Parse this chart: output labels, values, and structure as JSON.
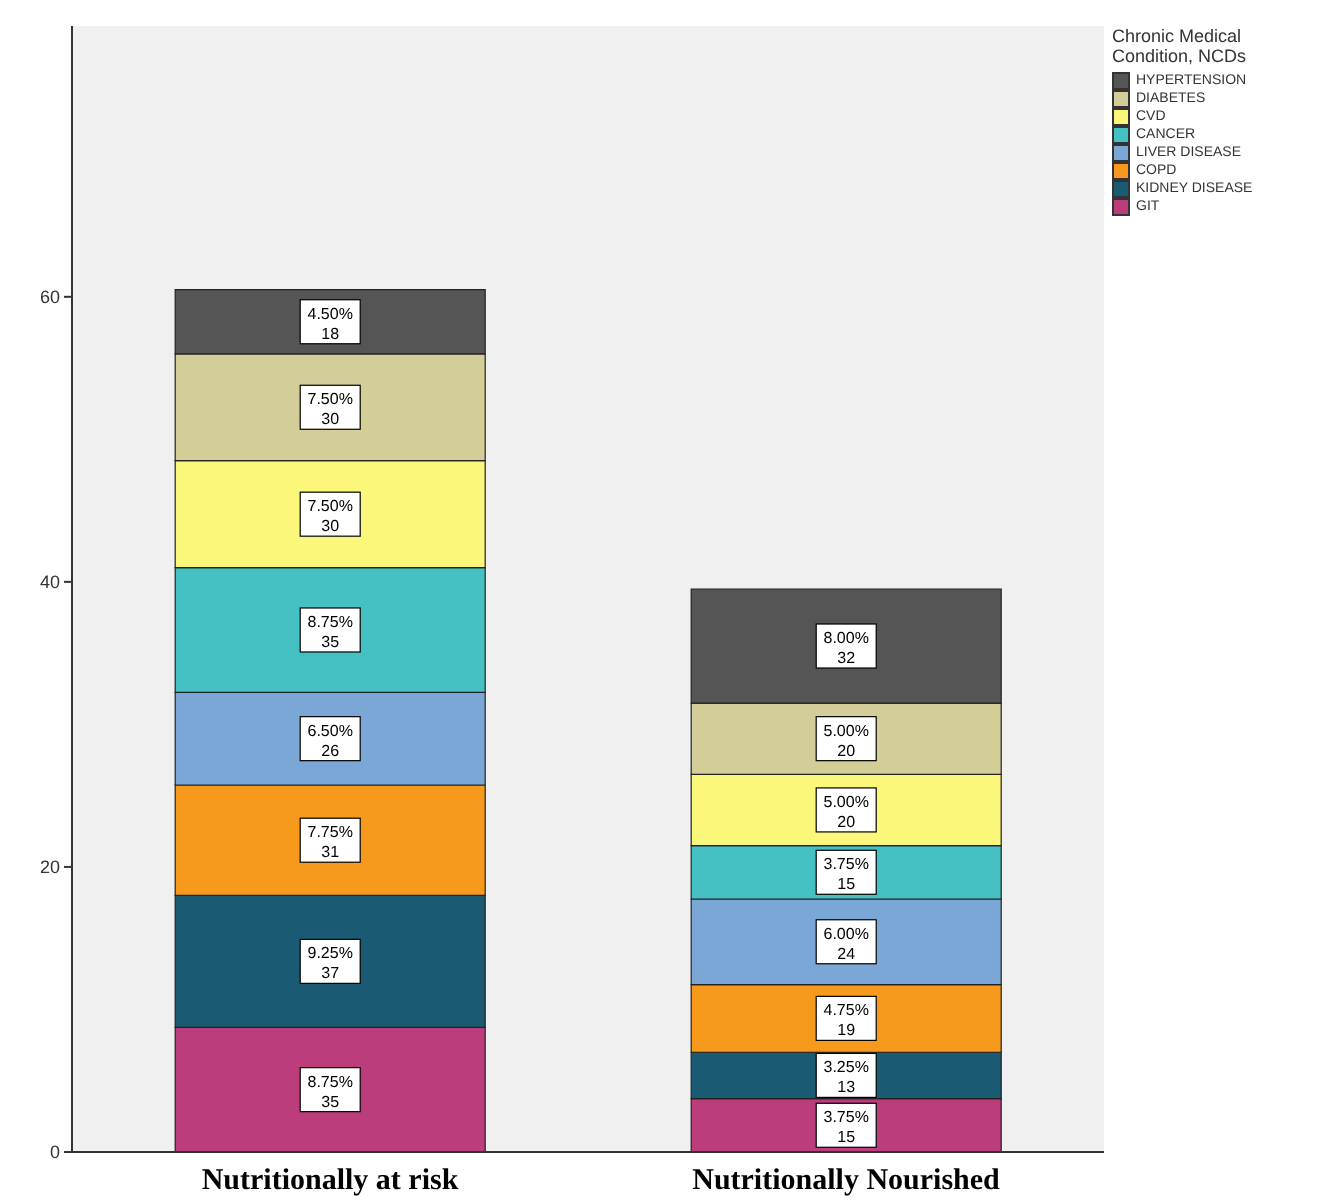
{
  "chart_data": {
    "type": "bar",
    "stacked": true,
    "categories": [
      "Nutritionally at risk",
      "Nutritionally Nourished"
    ],
    "legend_title": "Chronic Medical Condition, NCDs",
    "legend": "top right",
    "grid": false,
    "ylim": [
      0,
      79
    ],
    "yticks": [
      0,
      20,
      40,
      60
    ],
    "series": [
      {
        "name": "GIT",
        "color": "#bb3d7b",
        "values": [
          8.75,
          3.75
        ],
        "value_labels": [
          "8.75%\n35",
          "3.75%\n15"
        ]
      },
      {
        "name": "KIDNEY DISEASE",
        "color": "#1a5a72",
        "values": [
          9.25,
          3.25
        ],
        "value_labels": [
          "9.25%\n37",
          "3.25%\n13"
        ]
      },
      {
        "name": "COPD",
        "color": "#f7991d",
        "values": [
          7.75,
          4.75
        ],
        "value_labels": [
          "7.75%\n31",
          "4.75%\n19"
        ]
      },
      {
        "name": "LIVER DISEASE",
        "color": "#7ba7d6",
        "values": [
          6.5,
          6.0
        ],
        "value_labels": [
          "6.50%\n26",
          "6.00%\n24"
        ]
      },
      {
        "name": "CANCER",
        "color": "#45c1c4",
        "values": [
          8.75,
          3.75
        ],
        "value_labels": [
          "8.75%\n35",
          "3.75%\n15"
        ]
      },
      {
        "name": "CVD",
        "color": "#fbf77a",
        "values": [
          7.5,
          5.0
        ],
        "value_labels": [
          "7.50%\n30",
          "5.00%\n20"
        ]
      },
      {
        "name": "DIABETES",
        "color": "#d3cd97",
        "values": [
          7.5,
          5.0
        ],
        "value_labels": [
          "7.50%\n30",
          "5.00%\n20"
        ]
      },
      {
        "name": "HYPERTENSION",
        "color": "#555555",
        "values": [
          4.5,
          8.0
        ],
        "value_labels": [
          "4.50%\n18",
          "8.00%\n32"
        ]
      }
    ]
  }
}
